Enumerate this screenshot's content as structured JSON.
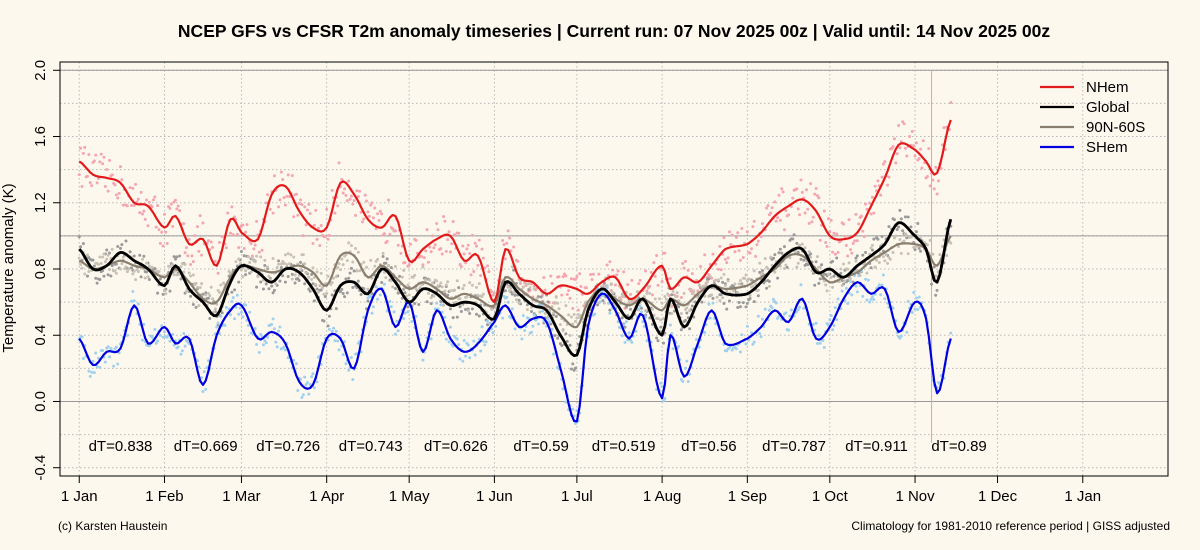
{
  "chart_data": {
    "type": "line",
    "title": "NCEP GFS vs CFSR T2m anomaly timeseries | Current run: 07 Nov 2025 00z | Valid until: 14 Nov 2025 00z",
    "ylabel": "Temperature anomaly (K)",
    "xlabel": "",
    "ylim": [
      -0.45,
      2.05
    ],
    "xlim": [
      -7,
      396
    ],
    "yticks": [
      -0.4,
      0.0,
      0.4,
      0.8,
      1.2,
      1.6,
      2.0
    ],
    "ytick_labels": [
      "-0.4",
      "0.0",
      "0.4",
      "0.8",
      "1.2",
      "1.6",
      "2.0"
    ],
    "xticks": [
      0,
      31,
      59,
      90,
      120,
      151,
      181,
      212,
      243,
      273,
      304,
      334,
      365
    ],
    "xtick_labels": [
      "1 Jan",
      "1 Feb",
      "1 Mar",
      "1 Apr",
      "1 May",
      "1 Jun",
      "1 Jul",
      "1 Aug",
      "1 Sep",
      "1 Oct",
      "1 Nov",
      "1 Dec",
      "1 Jan"
    ],
    "reference_lines": [
      0.0,
      1.0,
      2.0
    ],
    "forecast_start_day": 310,
    "legend_position": "top-right",
    "series": [
      {
        "name": "NHem",
        "color": "#e31a1c",
        "dot_color": "#f4a6b0",
        "x": [
          0,
          5,
          10,
          15,
          20,
          25,
          31,
          35,
          40,
          45,
          50,
          55,
          59,
          65,
          70,
          75,
          80,
          85,
          90,
          95,
          100,
          105,
          110,
          115,
          120,
          125,
          130,
          135,
          140,
          145,
          151,
          155,
          160,
          165,
          170,
          175,
          181,
          185,
          190,
          195,
          200,
          205,
          212,
          215,
          220,
          225,
          230,
          235,
          243,
          248,
          253,
          258,
          263,
          268,
          273,
          278,
          283,
          288,
          293,
          298,
          304,
          308,
          312,
          317
        ],
        "values": [
          1.45,
          1.37,
          1.35,
          1.32,
          1.2,
          1.18,
          1.05,
          1.12,
          0.95,
          0.98,
          0.82,
          1.1,
          1.02,
          0.98,
          1.25,
          1.3,
          1.15,
          1.05,
          1.05,
          1.32,
          1.25,
          1.1,
          1.05,
          1.12,
          0.85,
          0.92,
          0.98,
          1.0,
          0.85,
          0.88,
          0.6,
          0.92,
          0.75,
          0.72,
          0.65,
          0.7,
          0.68,
          0.65,
          0.72,
          0.75,
          0.62,
          0.68,
          0.82,
          0.68,
          0.75,
          0.72,
          0.82,
          0.92,
          0.95,
          1.02,
          1.12,
          1.18,
          1.22,
          1.15,
          1.0,
          0.98,
          1.02,
          1.18,
          1.35,
          1.55,
          1.52,
          1.45,
          1.38,
          1.7
        ]
      },
      {
        "name": "Global",
        "color": "#000000",
        "dot_color": "#9a9a9a",
        "x": [
          0,
          5,
          10,
          15,
          20,
          25,
          31,
          35,
          40,
          45,
          50,
          55,
          59,
          65,
          70,
          75,
          80,
          85,
          90,
          95,
          100,
          105,
          110,
          115,
          120,
          125,
          130,
          135,
          140,
          145,
          151,
          155,
          160,
          165,
          170,
          175,
          181,
          185,
          190,
          195,
          200,
          205,
          212,
          215,
          220,
          225,
          230,
          235,
          243,
          248,
          253,
          258,
          263,
          268,
          273,
          278,
          283,
          288,
          293,
          298,
          304,
          308,
          312,
          317
        ],
        "values": [
          0.92,
          0.8,
          0.82,
          0.9,
          0.85,
          0.8,
          0.7,
          0.82,
          0.68,
          0.6,
          0.52,
          0.72,
          0.82,
          0.78,
          0.72,
          0.8,
          0.78,
          0.68,
          0.55,
          0.7,
          0.72,
          0.65,
          0.8,
          0.72,
          0.6,
          0.68,
          0.65,
          0.58,
          0.6,
          0.58,
          0.5,
          0.72,
          0.65,
          0.58,
          0.55,
          0.4,
          0.28,
          0.55,
          0.68,
          0.6,
          0.5,
          0.62,
          0.4,
          0.62,
          0.45,
          0.6,
          0.7,
          0.65,
          0.65,
          0.72,
          0.82,
          0.9,
          0.92,
          0.78,
          0.8,
          0.75,
          0.82,
          0.88,
          0.95,
          1.08,
          1.0,
          0.92,
          0.72,
          1.1
        ]
      },
      {
        "name": "90N-60S",
        "color": "#8a7f6f",
        "dot_color": "#c8c2b6",
        "x": [
          0,
          5,
          10,
          15,
          20,
          25,
          31,
          35,
          40,
          45,
          50,
          55,
          59,
          65,
          70,
          75,
          80,
          85,
          90,
          95,
          100,
          105,
          110,
          115,
          120,
          125,
          130,
          135,
          140,
          145,
          151,
          155,
          160,
          165,
          170,
          175,
          181,
          185,
          190,
          195,
          200,
          205,
          212,
          215,
          220,
          225,
          230,
          235,
          243,
          248,
          253,
          258,
          263,
          268,
          273,
          278,
          283,
          288,
          293,
          298,
          304,
          308,
          312,
          317
        ],
        "values": [
          0.85,
          0.8,
          0.82,
          0.85,
          0.82,
          0.8,
          0.75,
          0.8,
          0.72,
          0.62,
          0.6,
          0.75,
          0.82,
          0.8,
          0.78,
          0.8,
          0.82,
          0.78,
          0.7,
          0.88,
          0.88,
          0.75,
          0.82,
          0.75,
          0.68,
          0.72,
          0.68,
          0.62,
          0.65,
          0.62,
          0.58,
          0.75,
          0.68,
          0.62,
          0.58,
          0.52,
          0.45,
          0.6,
          0.68,
          0.62,
          0.58,
          0.62,
          0.55,
          0.62,
          0.58,
          0.65,
          0.7,
          0.68,
          0.7,
          0.75,
          0.8,
          0.88,
          0.88,
          0.8,
          0.72,
          0.75,
          0.78,
          0.85,
          0.9,
          0.95,
          0.95,
          0.92,
          0.82,
          1.0
        ]
      },
      {
        "name": "SHem",
        "color": "#0000e0",
        "dot_color": "#9fd1ef",
        "x": [
          0,
          5,
          10,
          15,
          20,
          25,
          31,
          35,
          40,
          45,
          50,
          55,
          59,
          65,
          70,
          75,
          80,
          85,
          90,
          95,
          100,
          105,
          110,
          115,
          120,
          125,
          130,
          135,
          140,
          145,
          151,
          155,
          160,
          165,
          170,
          175,
          181,
          185,
          190,
          195,
          200,
          205,
          212,
          215,
          220,
          225,
          230,
          235,
          243,
          248,
          253,
          258,
          263,
          268,
          273,
          278,
          283,
          288,
          293,
          298,
          304,
          308,
          312,
          317
        ],
        "values": [
          0.38,
          0.22,
          0.3,
          0.32,
          0.58,
          0.35,
          0.45,
          0.35,
          0.38,
          0.1,
          0.4,
          0.55,
          0.58,
          0.38,
          0.42,
          0.35,
          0.12,
          0.1,
          0.38,
          0.38,
          0.2,
          0.55,
          0.68,
          0.45,
          0.6,
          0.3,
          0.55,
          0.38,
          0.3,
          0.35,
          0.48,
          0.58,
          0.45,
          0.5,
          0.48,
          0.2,
          -0.12,
          0.45,
          0.65,
          0.55,
          0.38,
          0.52,
          0.02,
          0.4,
          0.15,
          0.35,
          0.55,
          0.35,
          0.38,
          0.45,
          0.55,
          0.48,
          0.62,
          0.38,
          0.45,
          0.62,
          0.72,
          0.65,
          0.68,
          0.42,
          0.6,
          0.5,
          0.05,
          0.38
        ]
      }
    ],
    "annotations": [
      {
        "x": 15,
        "text": "dT=0.838"
      },
      {
        "x": 46,
        "text": "dT=0.669"
      },
      {
        "x": 76,
        "text": "dT=0.726"
      },
      {
        "x": 106,
        "text": "dT=0.743"
      },
      {
        "x": 137,
        "text": "dT=0.626"
      },
      {
        "x": 168,
        "text": "dT=0.59"
      },
      {
        "x": 198,
        "text": "dT=0.519"
      },
      {
        "x": 229,
        "text": "dT=0.56"
      },
      {
        "x": 260,
        "text": "dT=0.787"
      },
      {
        "x": 290,
        "text": "dT=0.911"
      },
      {
        "x": 320,
        "text": "dT=0.89"
      }
    ]
  },
  "credits": {
    "left": "(c) Karsten Haustein",
    "right": "Climatology for 1981-2010 reference period | GISS adjusted"
  },
  "colors": {
    "background": "#fdf8ed",
    "grid": "#b9b9b9",
    "reference": "#999999",
    "forecast_line": "#e8a0a0"
  }
}
